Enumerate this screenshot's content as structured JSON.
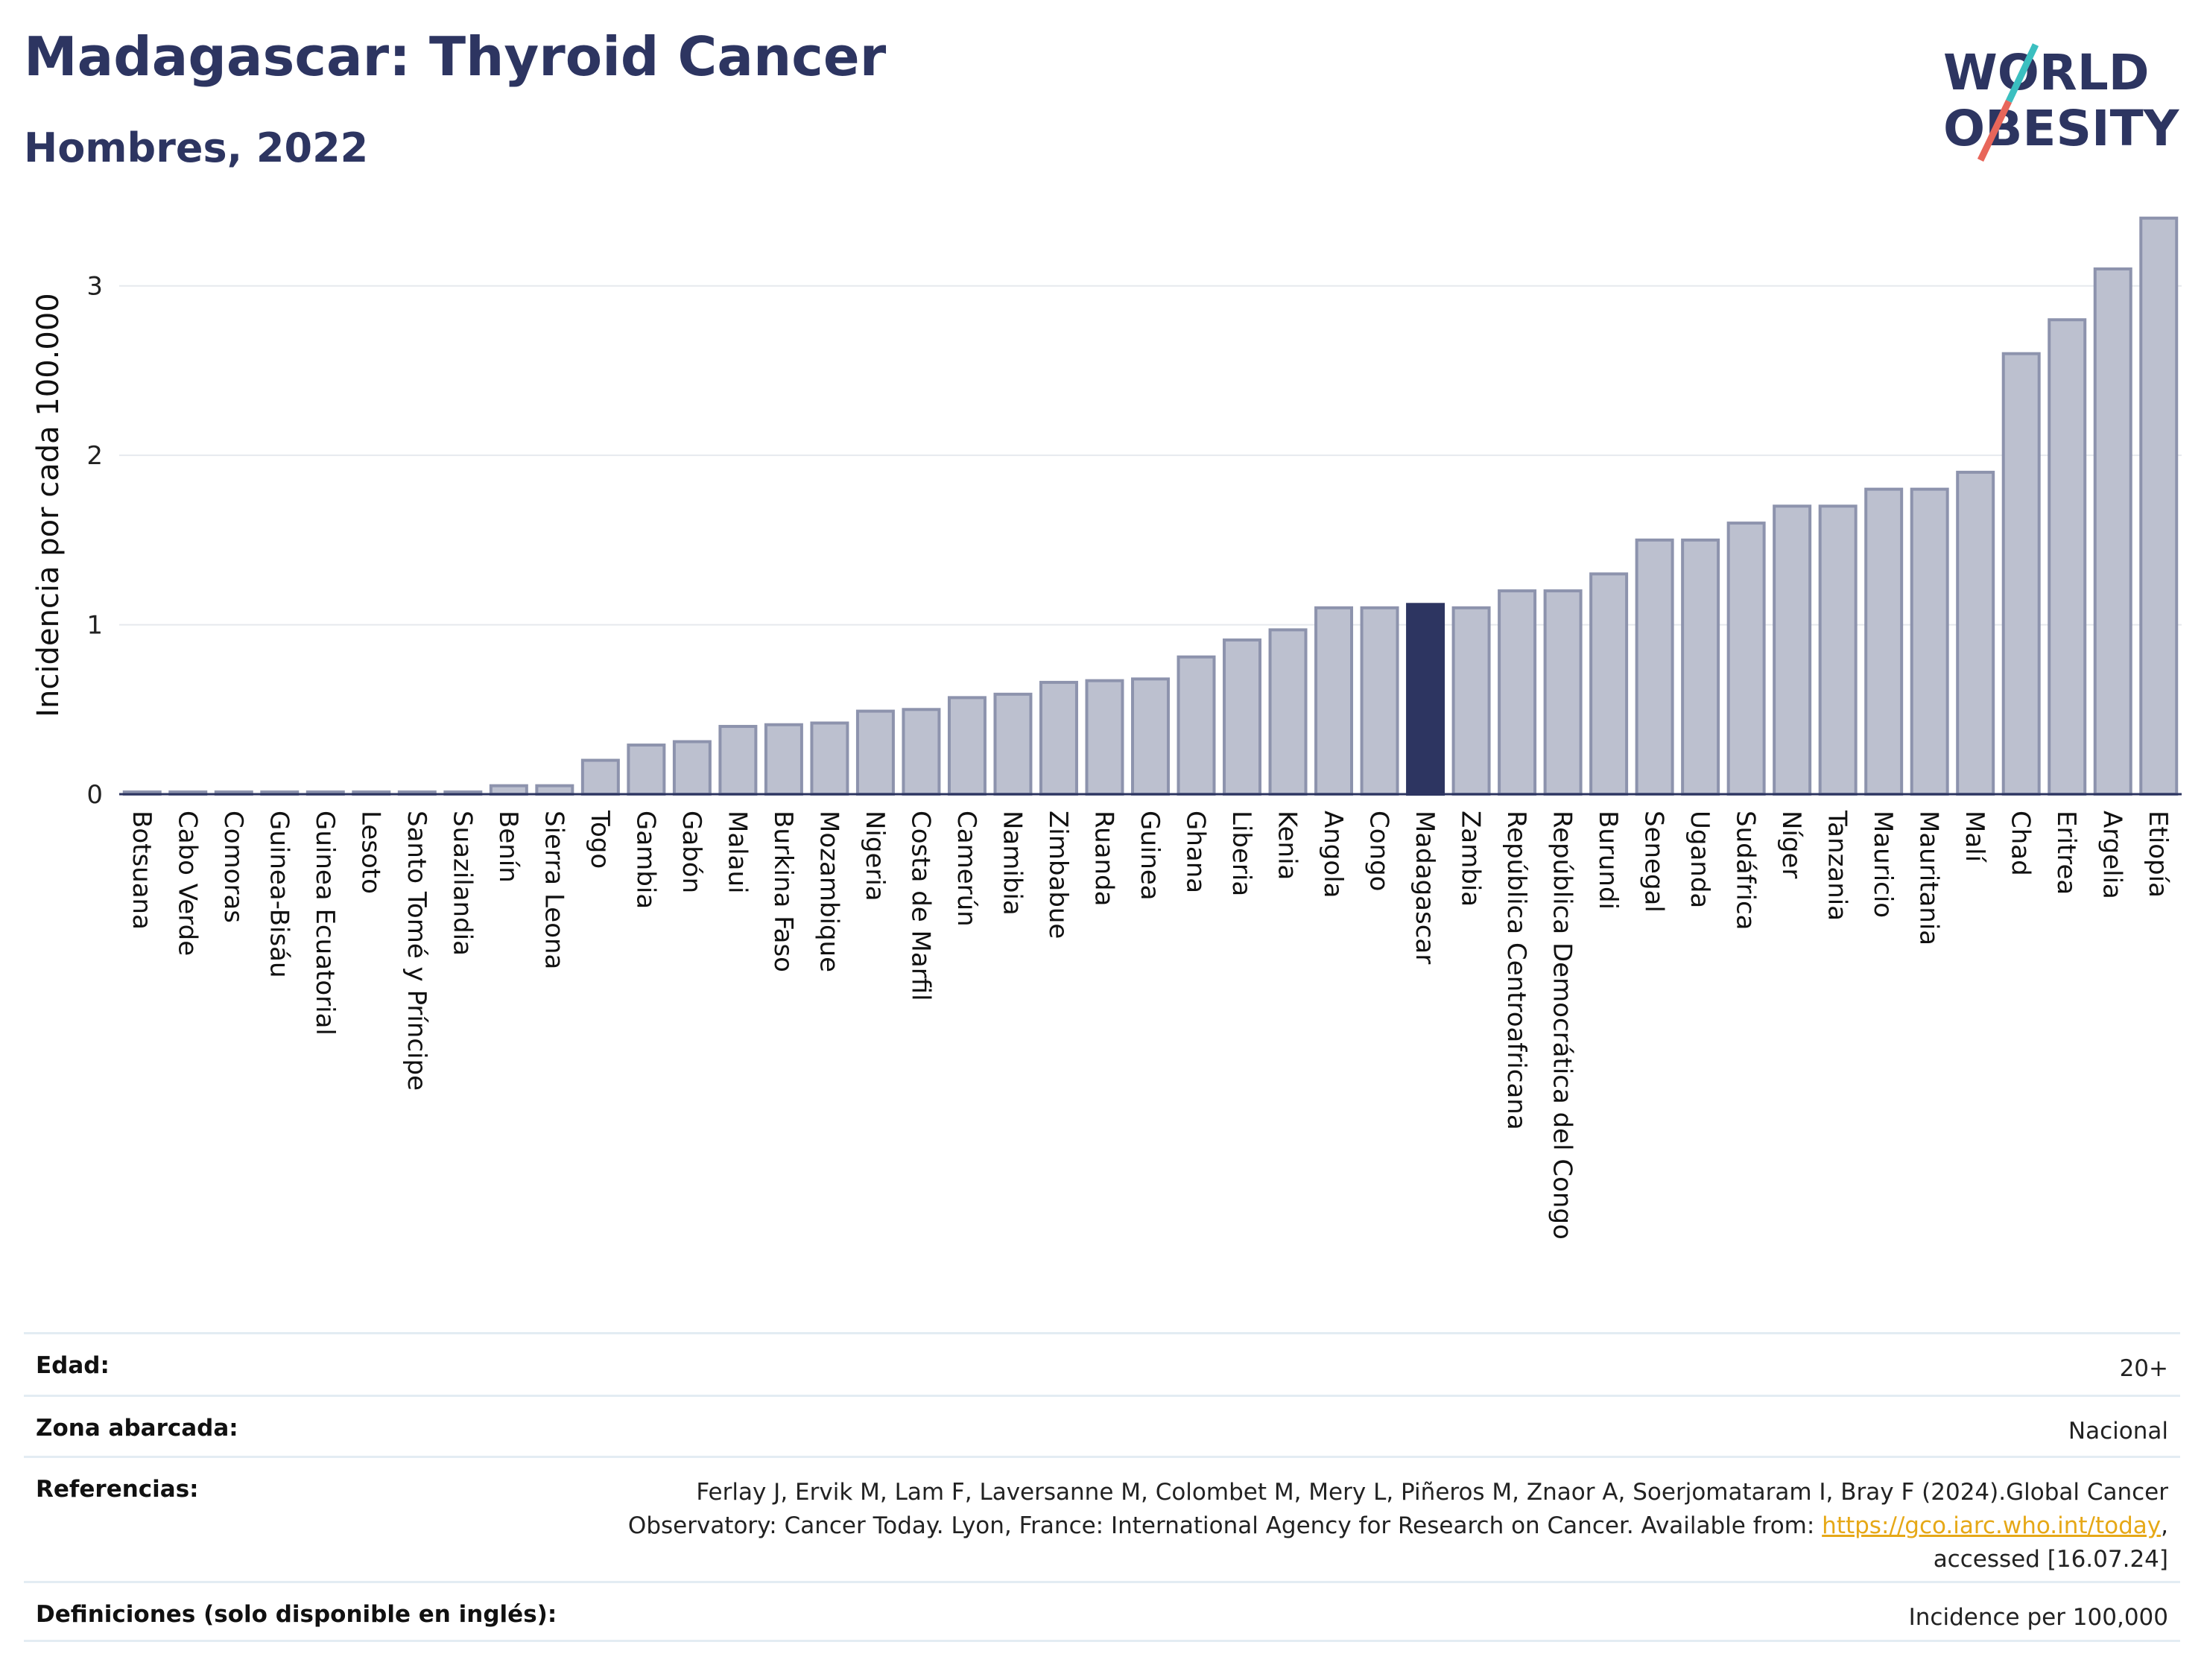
{
  "header": {
    "title": "Madagascar: Thyroid Cancer",
    "subtitle": "Hombres, 2022"
  },
  "logo": {
    "line1": "WORLD",
    "line2": "OBESITY",
    "colors": {
      "text": "#2d3561",
      "slash_teal": "#3bbfc0",
      "slash_red": "#e8665a"
    }
  },
  "chart_data": {
    "type": "bar",
    "ylabel": "Incidencia por cada 100.000",
    "ylim": [
      0,
      3.5
    ],
    "yticks": [
      0,
      1,
      2,
      3
    ],
    "grid": true,
    "highlight": "Madagascar",
    "colors": {
      "bar": "#bcc0cf",
      "bar_border": "#8d93ad",
      "highlight": "#2d3561",
      "grid": "#e6e9ee"
    },
    "categories": [
      "Botsuana",
      "Cabo Verde",
      "Comoras",
      "Guinea-Bisáu",
      "Guinea Ecuatorial",
      "Lesoto",
      "Santo Tomé y Príncipe",
      "Suazilandia",
      "Benín",
      "Sierra Leona",
      "Togo",
      "Gambia",
      "Gabón",
      "Malaui",
      "Burkina Faso",
      "Mozambique",
      "Nigeria",
      "Costa de Marfil",
      "Camerún",
      "Namibia",
      "Zimbabue",
      "Ruanda",
      "Guinea",
      "Ghana",
      "Liberia",
      "Kenia",
      "Angola",
      "Congo",
      "Madagascar",
      "Zambia",
      "República Centroafricana",
      "República Democrática del Congo",
      "Burundi",
      "Senegal",
      "Uganda",
      "Sudáfrica",
      "Níger",
      "Tanzania",
      "Mauricio",
      "Mauritania",
      "Malí",
      "Chad",
      "Eritrea",
      "Argelia",
      "Etiopía"
    ],
    "values": [
      0.01,
      0.01,
      0.01,
      0.01,
      0.01,
      0.01,
      0.01,
      0.01,
      0.05,
      0.05,
      0.2,
      0.29,
      0.31,
      0.4,
      0.41,
      0.42,
      0.49,
      0.5,
      0.57,
      0.59,
      0.66,
      0.67,
      0.68,
      0.81,
      0.91,
      0.97,
      1.1,
      1.1,
      1.12,
      1.1,
      1.2,
      1.2,
      1.3,
      1.5,
      1.5,
      1.6,
      1.7,
      1.7,
      1.8,
      1.8,
      1.9,
      2.6,
      2.8,
      3.1,
      3.4
    ]
  },
  "info": {
    "age_label": "Edad:",
    "age_value": "20+",
    "zone_label": "Zona abarcada:",
    "zone_value": "Nacional",
    "refs_label": "Referencias:",
    "refs_text": "Ferlay J, Ervik M, Lam F, Laversanne M, Colombet M, Mery L, Piñeros M, Znaor A, Soerjomataram I, Bray F (2024).Global Cancer Observatory: Cancer Today. Lyon, France: International Agency for Research on Cancer. Available from:",
    "refs_link": "https://gco.iarc.who.int/today",
    "refs_tail": ", accessed [16.07.24]",
    "defs_label": "Definiciones (solo disponible en inglés):",
    "defs_value": "Incidence per 100,000"
  }
}
